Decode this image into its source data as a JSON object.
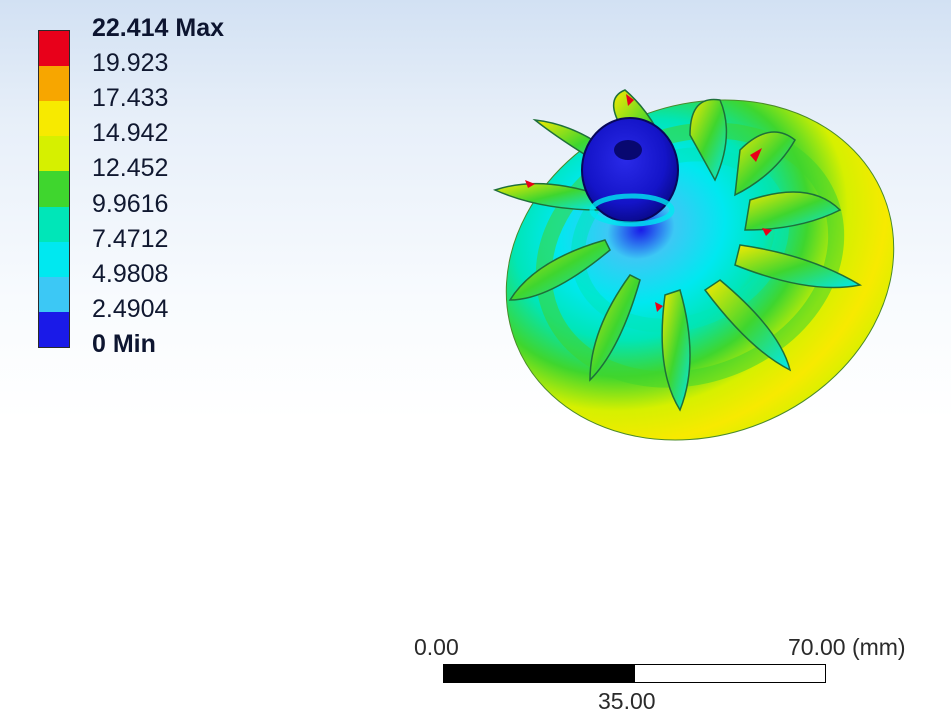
{
  "legend": {
    "max_label": "22.414 Max",
    "min_label": "0 Min",
    "levels": [
      {
        "label": "22.414 Max",
        "color": "#e8001a"
      },
      {
        "label": "19.923",
        "color": "#f7a600"
      },
      {
        "label": "17.433",
        "color": "#f7ea00"
      },
      {
        "label": "14.942",
        "color": "#d6f000"
      },
      {
        "label": "12.452",
        "color": "#3fd62e"
      },
      {
        "label": "9.9616",
        "color": "#00e6b8"
      },
      {
        "label": "7.4712",
        "color": "#00e8f0"
      },
      {
        "label": "4.9808",
        "color": "#3cc8f5"
      },
      {
        "label": "2.4904",
        "color": "#1a1ae8"
      },
      {
        "label": "0 Min",
        "color": ""
      }
    ]
  },
  "scale": {
    "left_label": "0.00",
    "right_label": "70.00 (mm)",
    "mid_label": "35.00",
    "fill_fraction": 0.5
  },
  "model": {
    "icon": "impeller-contour-model"
  }
}
